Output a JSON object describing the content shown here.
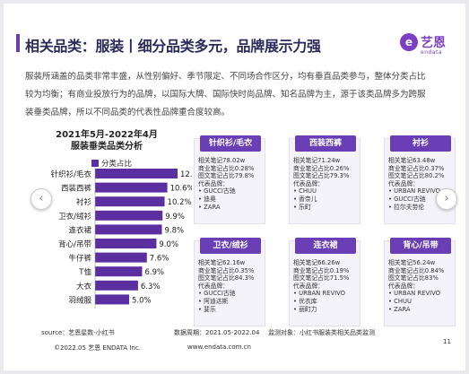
{
  "header": {
    "title": "相关品类：服装丨细分品类多元，品牌展示力强",
    "logo_mark": "e",
    "logo_text": "艺恩",
    "logo_sub": "endata"
  },
  "description": {
    "line1": "服装所涵盖的品类非常丰盛，从性别偏好、季节限定、不同场合作区分，均有垂直品类参与，整体分类占比",
    "line2": "较为均衡；有商业投放行为的品牌，以国际大牌、国际快时尚品牌、知名品牌为主，源于该类品牌多为跨服",
    "line3": "装垂类品牌，所以不同品类的代表性品牌重合度较高。"
  },
  "chart_data": {
    "type": "bar",
    "title_line1": "2021年5月-2022年4月",
    "title_line2": "服装垂类品类分析",
    "legend": "分类占比",
    "categories": [
      "针织衫/毛衣",
      "西装西裤",
      "衬衫",
      "卫衣/绒衫",
      "连衣裙",
      "背心/吊带",
      "牛仔裤",
      "T恤",
      "大衣",
      "羽绒服"
    ],
    "values": [
      12.1,
      10.6,
      10.2,
      9.9,
      9.8,
      9.0,
      7.6,
      6.9,
      6.3,
      5.0
    ],
    "labels": [
      "12.1%",
      "10.6%",
      "10.2%",
      "9.9%",
      "9.8%",
      "9.0%",
      "7.6%",
      "6.9%",
      "6.3%",
      "5.0%"
    ],
    "bar_color": "#5b2fa0"
  },
  "nav": {
    "left_icon": "‹",
    "right_icon": "›"
  },
  "cards": [
    {
      "title": "针织衫/毛衣",
      "lines": [
        "相关笔记78.02w",
        "商业笔记占比0.28%",
        "图文笔记占比79.8%",
        "代表品牌：",
        "GUCCI古驰",
        "迪奥",
        "ZARA"
      ]
    },
    {
      "title": "西装西裤",
      "lines": [
        "相关笔记71.24w",
        "商业笔记占比0.26%",
        "图文笔记占比79.3%",
        "代表品牌：",
        "CHUU",
        "香奈儿",
        "乐町"
      ]
    },
    {
      "title": "衬衫",
      "lines": [
        "相关笔记63.48w",
        "商业笔记占比0.37%",
        "图文笔记占比80.2%",
        "代表品牌：",
        "URBAN REVIVO",
        "GUCCI古驰",
        "拉尔夫劳伦"
      ]
    },
    {
      "title": "卫衣/绒衫",
      "lines": [
        "相关笔记62.16w",
        "商业笔记占比0.35%",
        "图文笔记占比84.3%",
        "代表品牌：",
        "GUCCI古驰",
        "阿迪达斯",
        "斐乐"
      ]
    },
    {
      "title": "连衣裙",
      "lines": [
        "相关笔记66.26w",
        "商业笔记占比0.19%",
        "图文笔记占比71.5%",
        "代表品牌：",
        "URBAN REVIVO",
        "优衣库",
        "丽町力"
      ]
    },
    {
      "title": "背心/吊带",
      "lines": [
        "相关笔记56.24w",
        "商业笔记占比0.84%",
        "图文笔记占比83%",
        "代表品牌：",
        "URBAN REVIVO",
        "CHUU",
        "ZARA"
      ]
    }
  ],
  "footer": {
    "source": "source：艺恩星数-小红书",
    "period": "数据周期：2021.05-2022.04",
    "scope": "监测对象：小红书服装类相关品类监测",
    "copyright": "©2022.05 艺恩 ENDATA Inc.",
    "website": "www.endata.com.cn",
    "page_number": "11"
  }
}
